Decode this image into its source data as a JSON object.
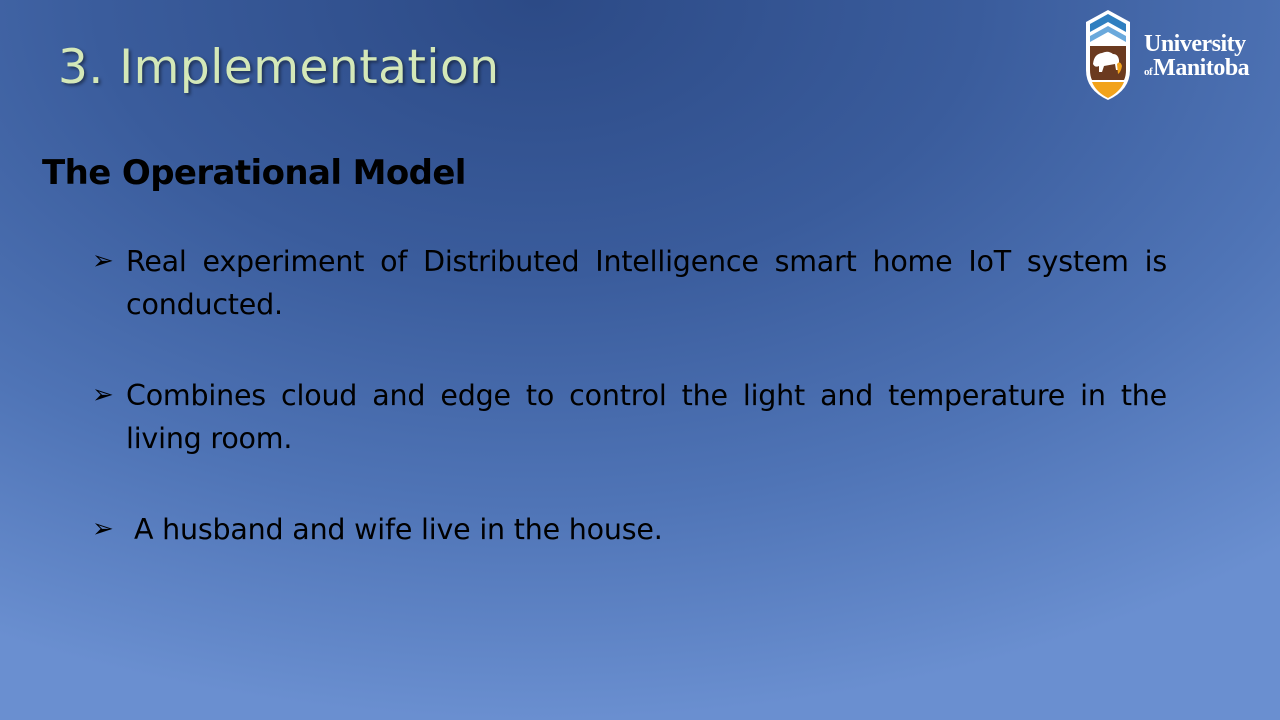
{
  "slide": {
    "title": "3. Implementation",
    "subtitle": "The Operational Model",
    "bullet_icon": "arrow-bullet-icon",
    "bullets": [
      "Real experiment of Distributed Intelligence smart home IoT system is conducted.",
      "Combines cloud and edge to control the light and temperature in the living room.",
      "A husband and wife live in the house."
    ]
  },
  "logo": {
    "line1": "University",
    "of": "of",
    "line2": "Manitoba"
  },
  "colors": {
    "title": "#d4e8b8",
    "text": "#000000",
    "logo_gold": "#f2a31b",
    "logo_brown": "#6b3a1f",
    "logo_blue": "#2f7fc0"
  }
}
